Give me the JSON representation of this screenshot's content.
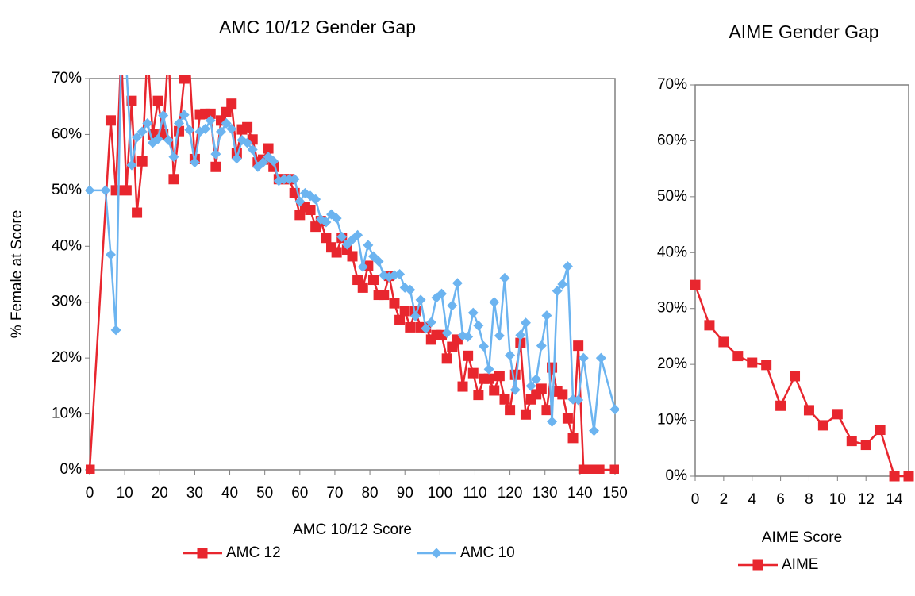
{
  "chart_data": [
    {
      "type": "line",
      "title": "AMC 10/12 Gender Gap",
      "x_label": "AMC 10/12 Score",
      "y_label": "% Female at Score",
      "xlim": [
        0,
        150
      ],
      "xticks": [
        0,
        10,
        20,
        30,
        40,
        50,
        60,
        70,
        80,
        90,
        100,
        110,
        120,
        130,
        140,
        150
      ],
      "ylim": [
        0,
        70
      ],
      "yticks": [
        {
          "value": 0,
          "label": "0%"
        },
        {
          "value": 10,
          "label": "10%"
        },
        {
          "value": 20,
          "label": "20%"
        },
        {
          "value": 30,
          "label": "30%"
        },
        {
          "value": 40,
          "label": "40%"
        },
        {
          "value": 50,
          "label": "50%"
        },
        {
          "value": 60,
          "label": "60%"
        },
        {
          "value": 70,
          "label": "70%"
        }
      ],
      "series": [
        {
          "name": "AMC 12",
          "color": "#e8262e",
          "marker": "square",
          "x": [
            0,
            6,
            7.5,
            9,
            10.5,
            12,
            13.5,
            15,
            16.5,
            18,
            19.5,
            21,
            22.5,
            24,
            25.5,
            27,
            28.5,
            30,
            31.5,
            33,
            34.5,
            36,
            37.5,
            39,
            40.5,
            42,
            43.5,
            45,
            46.5,
            48,
            49.5,
            51,
            52.5,
            54,
            55.5,
            57,
            58.5,
            60,
            61.5,
            63,
            64.5,
            66,
            67.5,
            69,
            70.5,
            72,
            73.5,
            75,
            76.5,
            78,
            79.5,
            81,
            82.5,
            84,
            85.5,
            87,
            88.5,
            90,
            91.5,
            93,
            94.5,
            96,
            97.5,
            99,
            100.5,
            102,
            103.5,
            105,
            106.5,
            108,
            109.5,
            111,
            112.5,
            114,
            115.5,
            117,
            118.5,
            120,
            121.5,
            123,
            124.5,
            126,
            127.5,
            129,
            130.5,
            132,
            133.5,
            135,
            136.5,
            138,
            139.5,
            141,
            142.5,
            144,
            145.5,
            150
          ],
          "values": [
            0,
            62.5,
            50,
            75,
            50,
            66,
            46,
            55.2,
            75,
            60,
            66,
            60,
            75,
            52,
            60.6,
            70,
            72,
            55.6,
            63.6,
            63.7,
            63.7,
            54.2,
            62.5,
            64,
            65.5,
            56.6,
            60.9,
            61.3,
            59.1,
            55,
            55.5,
            57.5,
            54.2,
            52,
            52,
            52,
            49.5,
            45.6,
            47,
            46.5,
            43.5,
            44.5,
            41.5,
            39.8,
            38.9,
            41.5,
            39.4,
            38.2,
            34,
            32.6,
            36.5,
            34,
            31.3,
            31.3,
            34.7,
            29.8,
            26.8,
            28.4,
            25.5,
            28.4,
            25.5,
            25.5,
            23.3,
            24.1,
            24.1,
            19.9,
            22,
            23.3,
            14.9,
            20.4,
            17.3,
            13.4,
            16.3,
            16.3,
            14.2,
            16.8,
            12.6,
            10.7,
            17,
            22.7,
            9.9,
            12.6,
            13.5,
            14.5,
            10.7,
            18.3,
            14,
            13.5,
            9.2,
            5.7,
            22.2,
            0,
            0,
            0,
            0,
            0
          ]
        },
        {
          "name": "AMC 10",
          "color": "#6cb4f0",
          "marker": "diamond",
          "x": [
            0,
            4.5,
            6,
            7.5,
            9,
            10.5,
            12,
            13.5,
            15,
            16.5,
            18,
            19.5,
            21,
            22.5,
            24,
            25.5,
            27,
            28.5,
            30,
            31.5,
            33,
            34.5,
            36,
            37.5,
            39,
            40.5,
            42,
            43.5,
            45,
            46.5,
            48,
            49.5,
            51,
            52.5,
            54,
            55.5,
            57,
            58.5,
            60,
            61.5,
            63,
            64.5,
            66,
            67.5,
            69,
            70.5,
            72,
            73.5,
            75,
            76.5,
            78,
            79.5,
            81,
            82.5,
            84,
            85.5,
            87,
            88.5,
            90,
            91.5,
            93,
            94.5,
            96,
            97.5,
            99,
            100.5,
            102,
            103.5,
            105,
            106.5,
            108,
            109.5,
            111,
            112.5,
            114,
            115.5,
            117,
            118.5,
            120,
            121.5,
            123,
            124.5,
            126,
            127.5,
            129,
            130.5,
            132,
            133.5,
            135,
            136.5,
            138,
            139.5,
            141,
            144,
            146,
            150
          ],
          "values": [
            50,
            50,
            38.5,
            25,
            75,
            72,
            54.5,
            59.5,
            60.5,
            62,
            58.5,
            59.2,
            63.4,
            59,
            56,
            62,
            63.5,
            60.8,
            55,
            60.5,
            61,
            62.5,
            56.5,
            60.5,
            62,
            61,
            55.7,
            59,
            58.5,
            57.3,
            54.2,
            55,
            56,
            55.2,
            51.7,
            52,
            52,
            52,
            48,
            49.5,
            49,
            48.4,
            44.8,
            44.3,
            45.7,
            45,
            41.7,
            40.3,
            41.2,
            42,
            36.3,
            40.2,
            38.2,
            37.3,
            34.8,
            34.5,
            34.8,
            35,
            32.6,
            32.2,
            27.5,
            30.4,
            25.3,
            26.4,
            30.8,
            31.5,
            24.5,
            29.4,
            33.4,
            24,
            23.8,
            28.1,
            25.8,
            22.1,
            18,
            30,
            24,
            34.3,
            20.5,
            14.3,
            24.1,
            26.3,
            15,
            16.2,
            22.2,
            27.6,
            8.6,
            32,
            33.2,
            36.4,
            12.6,
            12.5,
            20,
            7,
            20,
            10.8
          ]
        }
      ]
    },
    {
      "type": "line",
      "title": "AIME Gender Gap",
      "x_label": "AIME Score",
      "xlim": [
        0,
        15
      ],
      "xticks": [
        0,
        2,
        4,
        6,
        8,
        10,
        12,
        14
      ],
      "ylim": [
        0,
        70
      ],
      "yticks": [
        {
          "value": 0,
          "label": "0%"
        },
        {
          "value": 10,
          "label": "10%"
        },
        {
          "value": 20,
          "label": "20%"
        },
        {
          "value": 30,
          "label": "30%"
        },
        {
          "value": 40,
          "label": "40%"
        },
        {
          "value": 50,
          "label": "50%"
        },
        {
          "value": 60,
          "label": "60%"
        },
        {
          "value": 70,
          "label": "70%"
        }
      ],
      "series": [
        {
          "name": "AIME",
          "color": "#e8262e",
          "marker": "square",
          "x": [
            0,
            1,
            2,
            3,
            4,
            5,
            6,
            7,
            8,
            9,
            10,
            11,
            12,
            13,
            14,
            15
          ],
          "values": [
            34.2,
            27,
            24,
            21.5,
            20.3,
            19.9,
            12.6,
            17.9,
            11.8,
            9.1,
            11.1,
            6.3,
            5.6,
            8.3,
            0,
            0
          ]
        }
      ]
    }
  ]
}
